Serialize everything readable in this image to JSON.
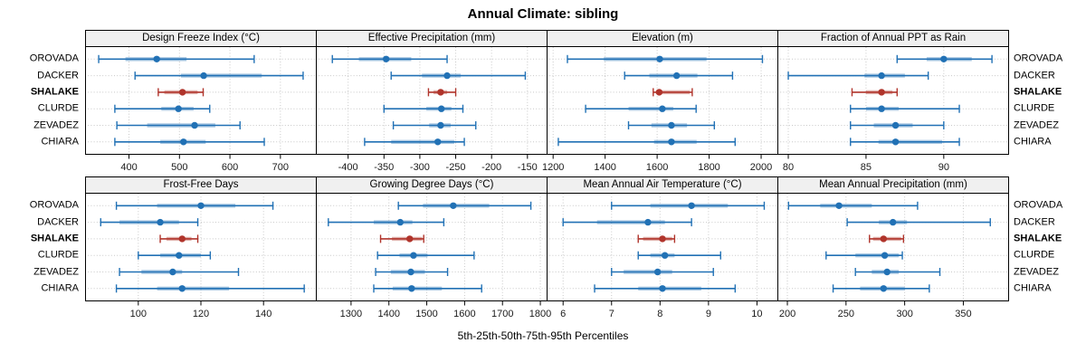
{
  "chart_data": {
    "type": "scatter",
    "subtype": "percentile-whisker-dotplot",
    "title": "Annual Climate: sibling",
    "xlabel": "5th-25th-50th-75th-95th Percentiles",
    "legend_position": "none",
    "grid": "dotted",
    "categories": [
      "OROVADA",
      "DACKER",
      "SHALAKE",
      "CLURDE",
      "ZEVADEZ",
      "CHIARA"
    ],
    "highlighted_category": "SHALAKE",
    "percentile_labels": [
      "p5",
      "p25",
      "p50",
      "p75",
      "p95"
    ],
    "colors": {
      "series": "#2171b5",
      "highlight": "#b0342b",
      "band_opacity": 0.38,
      "grid": "#c8c8c8",
      "header_bg": "#f0f0f0",
      "border": "#000000"
    },
    "panels": [
      {
        "label": "Design Freeze Index (°C)",
        "row": 0,
        "xlim": [
          313,
          772
        ],
        "ticks": [
          400,
          500,
          600,
          700
        ],
        "values": {
          "OROVADA": [
            340,
            393,
            455,
            514,
            648
          ],
          "DACKER": [
            412,
            503,
            548,
            663,
            745
          ],
          "SHALAKE": [
            458,
            470,
            506,
            536,
            547
          ],
          "CLURDE": [
            372,
            464,
            498,
            528,
            560
          ],
          "ZEVADEZ": [
            376,
            436,
            530,
            571,
            620
          ],
          "CHIARA": [
            372,
            462,
            508,
            552,
            668
          ]
        }
      },
      {
        "label": "Effective Precipitation (mm)",
        "row": 0,
        "xlim": [
          -445,
          -122
        ],
        "ticks": [
          -400,
          -350,
          -300,
          -250,
          -200,
          -150
        ],
        "values": {
          "OROVADA": [
            -422,
            -385,
            -347,
            -312,
            -262
          ],
          "DACKER": [
            -340,
            -297,
            -262,
            -243,
            -153
          ],
          "SHALAKE": [
            -288,
            -281,
            -271,
            -262,
            -250
          ],
          "CLURDE": [
            -350,
            -291,
            -270,
            -256,
            -240
          ],
          "ZEVADEZ": [
            -337,
            -287,
            -271,
            -257,
            -222
          ],
          "CHIARA": [
            -377,
            -340,
            -275,
            -252,
            -238
          ]
        }
      },
      {
        "label": "Elevation (m)",
        "row": 0,
        "xlim": [
          1175,
          2066
        ],
        "ticks": [
          1200,
          1400,
          1600,
          1800,
          2000
        ],
        "values": {
          "OROVADA": [
            1255,
            1395,
            1610,
            1790,
            2005
          ],
          "DACKER": [
            1475,
            1570,
            1675,
            1755,
            1890
          ],
          "SHALAKE": [
            1585,
            1595,
            1608,
            1725,
            1735
          ],
          "CLURDE": [
            1325,
            1490,
            1620,
            1662,
            1750
          ],
          "ZEVADEZ": [
            1490,
            1578,
            1655,
            1715,
            1820
          ],
          "CHIARA": [
            1220,
            1588,
            1655,
            1752,
            1900
          ]
        }
      },
      {
        "label": "Fraction of Annual PPT as Rain",
        "row": 0,
        "xlim": [
          79.3,
          94.2
        ],
        "ticks": [
          80,
          85,
          90
        ],
        "values": {
          "OROVADA": [
            87.0,
            88.9,
            90.0,
            91.8,
            93.1
          ],
          "DACKER": [
            80.0,
            84.9,
            86.0,
            87.5,
            89.0
          ],
          "SHALAKE": [
            84.1,
            85.0,
            86.0,
            86.7,
            87.0
          ],
          "CLURDE": [
            84.0,
            85.0,
            86.0,
            87.1,
            91.0
          ],
          "ZEVADEZ": [
            84.0,
            85.5,
            86.9,
            88.0,
            90.0
          ],
          "CHIARA": [
            84.0,
            85.8,
            86.9,
            89.9,
            91.0
          ]
        }
      },
      {
        "label": "Frost-Free Days",
        "row": 1,
        "xlim": [
          83,
          157
        ],
        "ticks": [
          100,
          120,
          140
        ],
        "values": {
          "OROVADA": [
            93,
            106,
            120,
            131,
            143
          ],
          "DACKER": [
            88,
            94,
            107,
            113,
            119
          ],
          "SHALAKE": [
            107,
            109,
            114,
            117,
            119
          ],
          "CLURDE": [
            100,
            107,
            113,
            120,
            123
          ],
          "ZEVADEZ": [
            94,
            101,
            111,
            114,
            132
          ],
          "CHIARA": [
            93,
            106,
            114,
            129,
            153
          ]
        }
      },
      {
        "label": "Growing Degree Days (°C)",
        "row": 1,
        "xlim": [
          1207,
          1819
        ],
        "ticks": [
          1300,
          1400,
          1500,
          1600,
          1700,
          1800
        ],
        "values": {
          "OROVADA": [
            1425,
            1490,
            1570,
            1665,
            1775
          ],
          "DACKER": [
            1240,
            1360,
            1430,
            1462,
            1545
          ],
          "SHALAKE": [
            1378,
            1408,
            1455,
            1488,
            1492
          ],
          "CLURDE": [
            1370,
            1428,
            1465,
            1502,
            1625
          ],
          "ZEVADEZ": [
            1365,
            1405,
            1458,
            1495,
            1555
          ],
          "CHIARA": [
            1360,
            1410,
            1460,
            1540,
            1645
          ]
        }
      },
      {
        "label": "Mean Annual Air Temperature (°C)",
        "row": 1,
        "xlim": [
          5.66,
          10.44
        ],
        "ticks": [
          6,
          7,
          8,
          9,
          10
        ],
        "values": {
          "OROVADA": [
            7.0,
            7.8,
            8.65,
            9.4,
            10.15
          ],
          "DACKER": [
            6.0,
            6.7,
            7.75,
            8.1,
            8.65
          ],
          "SHALAKE": [
            7.55,
            7.65,
            8.05,
            8.25,
            8.3
          ],
          "CLURDE": [
            7.55,
            7.8,
            8.1,
            8.3,
            9.25
          ],
          "ZEVADEZ": [
            7.0,
            7.25,
            7.95,
            8.25,
            9.1
          ],
          "CHIARA": [
            6.65,
            7.55,
            8.05,
            8.85,
            9.55
          ]
        }
      },
      {
        "label": "Mean Annual Precipitation (mm)",
        "row": 1,
        "xlim": [
          191.5,
          389
        ],
        "ticks": [
          200,
          250,
          300,
          350
        ],
        "values": {
          "OROVADA": [
            201,
            228,
            244,
            272,
            311
          ],
          "DACKER": [
            251,
            278,
            290,
            302,
            373
          ],
          "SHALAKE": [
            270,
            273,
            282,
            297,
            299
          ],
          "CLURDE": [
            233,
            258,
            283,
            295,
            298
          ],
          "ZEVADEZ": [
            258,
            272,
            285,
            295,
            330
          ],
          "CHIARA": [
            239,
            262,
            282,
            300,
            321
          ]
        }
      }
    ]
  }
}
